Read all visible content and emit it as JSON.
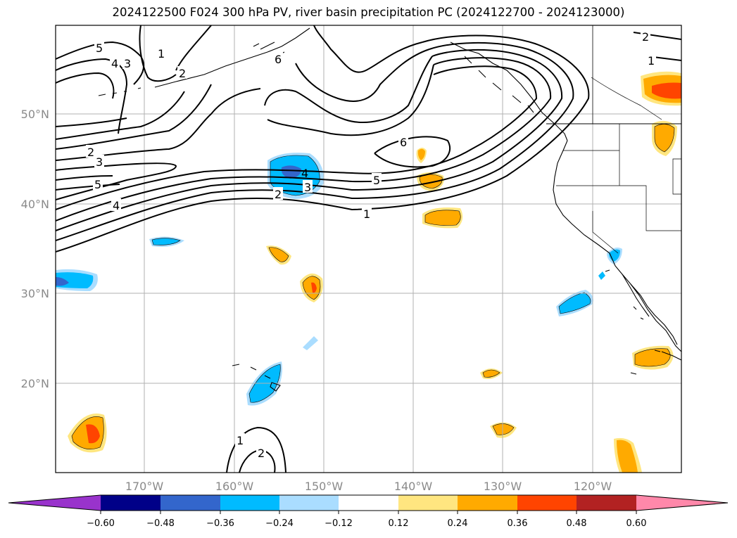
{
  "title": "2024122500 F024 300 hPa PV, river basin precipitation PC (2024122700 - 2024123000)",
  "map": {
    "lon_labels": [
      "170°W",
      "160°W",
      "150°W",
      "140°W",
      "130°W",
      "120°W"
    ],
    "lat_labels": [
      "50°N",
      "40°N",
      "30°N",
      "20°N"
    ],
    "contour_labels": [
      "5",
      "4",
      "3",
      "2",
      "1",
      "6",
      "2",
      "3",
      "5",
      "4",
      "2",
      "3",
      "4",
      "6",
      "5",
      "1",
      "2",
      "1",
      "1",
      "2"
    ]
  },
  "colorbar": {
    "tick_labels": [
      "−0.60",
      "−0.48",
      "−0.36",
      "−0.24",
      "−0.12",
      "0.12",
      "0.24",
      "0.36",
      "0.48",
      "0.60"
    ],
    "colors": [
      "#9933cc",
      "#000088",
      "#3366cc",
      "#00bbff",
      "#aaddff",
      "#ffffff",
      "#ffe680",
      "#ffaa00",
      "#ff4400",
      "#b22222",
      "#ff88aa"
    ]
  },
  "colors": {
    "grid": "#b0b0b0",
    "tick_text": "#8a8a8a"
  }
}
